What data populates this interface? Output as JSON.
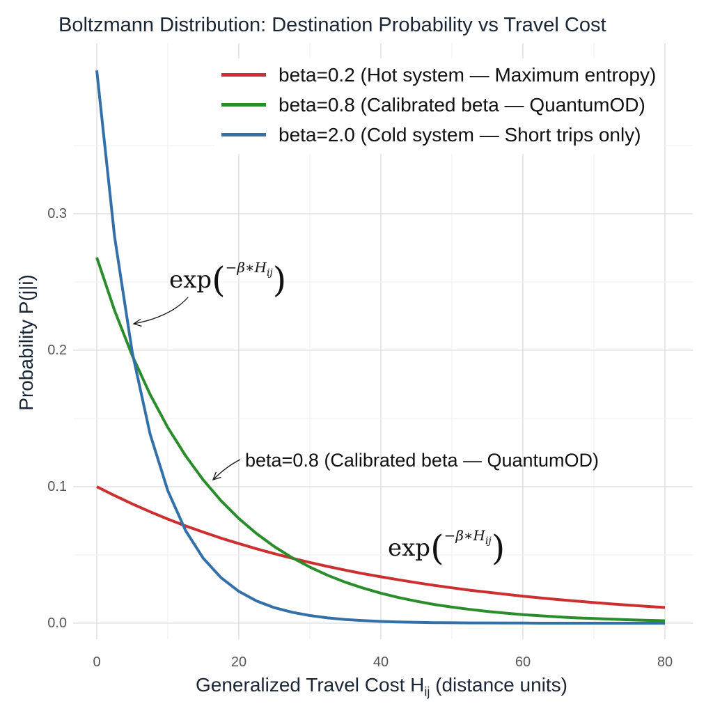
{
  "chart_data": {
    "type": "line",
    "title": "Boltzmann Distribution: Destination Probability vs Travel Cost",
    "xlabel": "Generalized Travel Cost H",
    "xlabel_sub": "ij",
    "xlabel_suffix": " (distance units)",
    "ylabel": "Probability P(j|i)",
    "xlim": [
      -4,
      84
    ],
    "ylim": [
      -0.015,
      0.41
    ],
    "xticks": [
      "0",
      "20",
      "40",
      "60",
      "80"
    ],
    "yticks": [
      "0.0",
      "0.1",
      "0.2",
      "0.3"
    ],
    "grid": true,
    "legend_position": "top-right",
    "x": [
      0,
      2.5,
      5,
      7.5,
      10,
      12.5,
      15,
      17.5,
      20,
      22.5,
      25,
      27.5,
      30,
      32.5,
      35,
      37.5,
      40,
      42.5,
      45,
      47.5,
      50,
      52.5,
      55,
      57.5,
      60,
      62.5,
      65,
      67.5,
      70,
      72.5,
      75,
      77.5,
      80
    ],
    "series": [
      {
        "name": "beta=0.2 (Hot system — Maximum entropy)",
        "color": "#cc2f2f",
        "values": [
          0.1,
          0.0935,
          0.0874,
          0.0817,
          0.0763,
          0.0713,
          0.0667,
          0.0623,
          0.0583,
          0.0545,
          0.0509,
          0.0476,
          0.0445,
          0.0416,
          0.0389,
          0.0363,
          0.034,
          0.0318,
          0.0297,
          0.0277,
          0.0259,
          0.0242,
          0.0227,
          0.0212,
          0.0198,
          0.0185,
          0.0173,
          0.0162,
          0.0151,
          0.0141,
          0.0132,
          0.0123,
          0.0115
        ]
      },
      {
        "name": "beta=0.8 (Calibrated beta — QuantumOD)",
        "color": "#2a8c2a",
        "values": [
          0.268,
          0.2292,
          0.196,
          0.1677,
          0.1434,
          0.1227,
          0.1049,
          0.0897,
          0.0767,
          0.0656,
          0.0561,
          0.048,
          0.0411,
          0.0351,
          0.03,
          0.0257,
          0.022,
          0.0188,
          0.0161,
          0.0137,
          0.0118,
          0.0101,
          0.0086,
          0.0074,
          0.0063,
          0.0054,
          0.0046,
          0.0039,
          0.0034,
          0.0029,
          0.0025,
          0.0021,
          0.0018
        ]
      },
      {
        "name": "beta=2.0 (Cold system — Short trips only)",
        "color": "#3470a8",
        "values": [
          0.405,
          0.2834,
          0.1983,
          0.1387,
          0.0971,
          0.0679,
          0.0475,
          0.0333,
          0.0233,
          0.0163,
          0.0114,
          0.008,
          0.0056,
          0.0039,
          0.0027,
          0.0019,
          0.0013,
          0.0009,
          0.0006,
          0.0004,
          0.0003,
          0.0002,
          0.0002,
          0.0001,
          0.0001,
          0,
          0,
          0,
          0,
          0,
          0,
          0,
          0
        ]
      }
    ],
    "annotations": {
      "formula_base": "exp",
      "formula_exponent": "−β∗H",
      "formula_exponent_sub": "ij",
      "label": "beta=0.8 (Calibrated beta — QuantumOD)"
    }
  }
}
